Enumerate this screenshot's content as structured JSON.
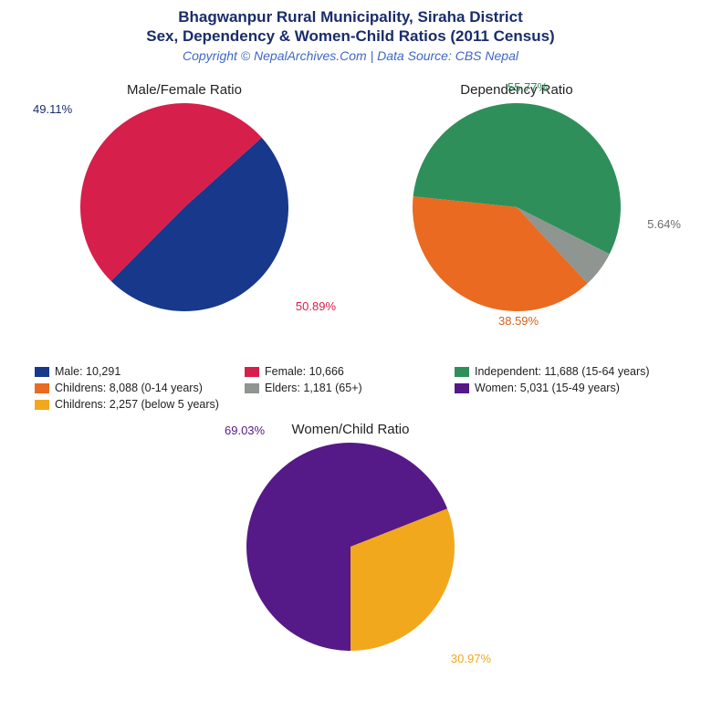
{
  "header": {
    "title_line1": "Bhagwanpur Rural Municipality, Siraha District",
    "title_line2": "Sex, Dependency & Women-Child Ratios (2011 Census)",
    "subtitle": "Copyright © NepalArchives.Com | Data Source: CBS Nepal",
    "title_color": "#1a2d6b",
    "subtitle_color": "#3f67c4"
  },
  "colors": {
    "male": "#17388b",
    "female": "#d71f4b",
    "children": "#e96a20",
    "elders": "#8f9590",
    "independent": "#2f8f5b",
    "women": "#561988",
    "children_u5": "#f2a81d",
    "label_navy": "#1a2d6b",
    "label_green": "#2f8f5b",
    "label_gray": "#6b6f6c",
    "label_orange": "#d4611b",
    "label_purple": "#561988"
  },
  "charts": {
    "sex": {
      "title": "Male/Female Ratio",
      "type": "pie",
      "diameter": 228,
      "slices": [
        {
          "key": "male",
          "pct": 49.11,
          "label": "49.11%"
        },
        {
          "key": "female",
          "pct": 50.89,
          "label": "50.89%"
        }
      ],
      "start_angle": -42
    },
    "dependency": {
      "title": "Dependency Ratio",
      "type": "pie",
      "diameter": 228,
      "slices": [
        {
          "key": "independent",
          "pct": 55.77,
          "label": "55.77%"
        },
        {
          "key": "elders",
          "pct": 5.64,
          "label": "5.64%"
        },
        {
          "key": "children",
          "pct": 38.59,
          "label": "38.59%"
        }
      ],
      "start_angle": 186
    },
    "womenchild": {
      "title": "Women/Child Ratio",
      "type": "pie",
      "diameter": 228,
      "slices": [
        {
          "key": "women",
          "pct": 69.03,
          "label": "69.03%"
        },
        {
          "key": "children_u5",
          "pct": 30.97,
          "label": "30.97%"
        }
      ],
      "start_angle": 90
    }
  },
  "legend": [
    {
      "color_key": "male",
      "text": "Male: 10,291"
    },
    {
      "color_key": "female",
      "text": "Female: 10,666"
    },
    {
      "color_key": "independent",
      "text": "Independent: 11,688 (15-64 years)"
    },
    {
      "color_key": "children",
      "text": "Childrens: 8,088 (0-14 years)"
    },
    {
      "color_key": "elders",
      "text": "Elders: 1,181 (65+)"
    },
    {
      "color_key": "women",
      "text": "Women: 5,031 (15-49 years)"
    },
    {
      "color_key": "children_u5",
      "text": "Childrens: 2,257 (below 5 years)"
    }
  ]
}
